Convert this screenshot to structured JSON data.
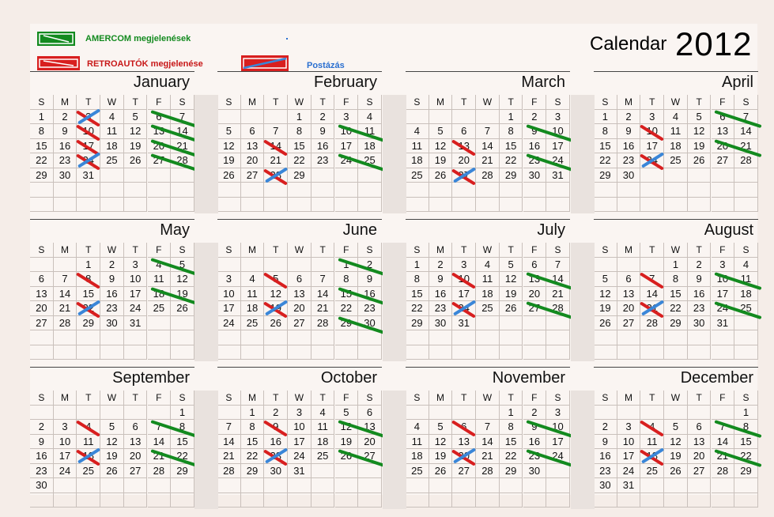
{
  "legend": {
    "amercom_label": "AMERCOM megjelenések",
    "retro_label": "RETROAUTÓK megjelenése",
    "postazas_label": "Postázás",
    "colors": {
      "amercom": "#138a1f",
      "retro": "#d81f1f",
      "postazas": "#3a86d8"
    }
  },
  "title": {
    "word": "Calendar",
    "year": "2012"
  },
  "weekday_headers": [
    "S",
    "M",
    "T",
    "W",
    "T",
    "F",
    "S"
  ],
  "months": [
    {
      "name": "January",
      "start": 0,
      "days": 31,
      "green": [
        [
          13,
          14
        ],
        [
          6,
          7
        ],
        [
          20,
          21
        ],
        [
          27,
          28
        ]
      ],
      "red": [
        3,
        10,
        17,
        24
      ],
      "blue": [
        3,
        24
      ]
    },
    {
      "name": "February",
      "start": 3,
      "days": 29,
      "green": [
        [
          10,
          11
        ],
        [
          24,
          25
        ]
      ],
      "red": [
        14,
        28
      ],
      "blue": [
        28
      ]
    },
    {
      "name": "March",
      "start": 4,
      "days": 31,
      "green": [
        [
          9,
          10
        ],
        [
          23,
          24
        ]
      ],
      "red": [
        13,
        27
      ],
      "blue": [
        27
      ]
    },
    {
      "name": "April",
      "start": 0,
      "days": 30,
      "green": [
        [
          6,
          7
        ],
        [
          20,
          21
        ]
      ],
      "red": [
        10,
        24
      ],
      "blue": [
        24
      ]
    },
    {
      "name": "May",
      "start": 2,
      "days": 31,
      "green": [
        [
          4,
          5
        ],
        [
          18,
          19
        ]
      ],
      "red": [
        8,
        22
      ],
      "blue": [
        22
      ]
    },
    {
      "name": "June",
      "start": 5,
      "days": 30,
      "green": [
        [
          1,
          2
        ],
        [
          15,
          16
        ],
        [
          29,
          30
        ]
      ],
      "red": [
        5,
        19
      ],
      "blue": [
        19
      ]
    },
    {
      "name": "July",
      "start": 0,
      "days": 31,
      "green": [
        [
          13,
          14
        ],
        [
          27,
          28
        ]
      ],
      "red": [
        10,
        24
      ],
      "blue": [
        24
      ]
    },
    {
      "name": "August",
      "start": 3,
      "days": 31,
      "green": [
        [
          10,
          11
        ],
        [
          24,
          25
        ]
      ],
      "red": [
        7,
        21
      ],
      "blue": [
        21
      ]
    },
    {
      "name": "September",
      "start": 6,
      "days": 30,
      "green": [
        [
          7,
          8
        ],
        [
          21,
          22
        ]
      ],
      "red": [
        4,
        18
      ],
      "blue": [
        18
      ]
    },
    {
      "name": "October",
      "start": 1,
      "days": 31,
      "green": [
        [
          12,
          13
        ],
        [
          26,
          27
        ]
      ],
      "red": [
        9,
        23
      ],
      "blue": [
        23
      ]
    },
    {
      "name": "November",
      "start": 4,
      "days": 30,
      "green": [
        [
          9,
          10
        ],
        [
          23,
          24
        ]
      ],
      "red": [
        6,
        20
      ],
      "blue": [
        20
      ]
    },
    {
      "name": "December",
      "start": 6,
      "days": 31,
      "green": [
        [
          7,
          8
        ],
        [
          21,
          22
        ]
      ],
      "red": [
        4,
        18
      ],
      "blue": [
        18
      ]
    }
  ]
}
